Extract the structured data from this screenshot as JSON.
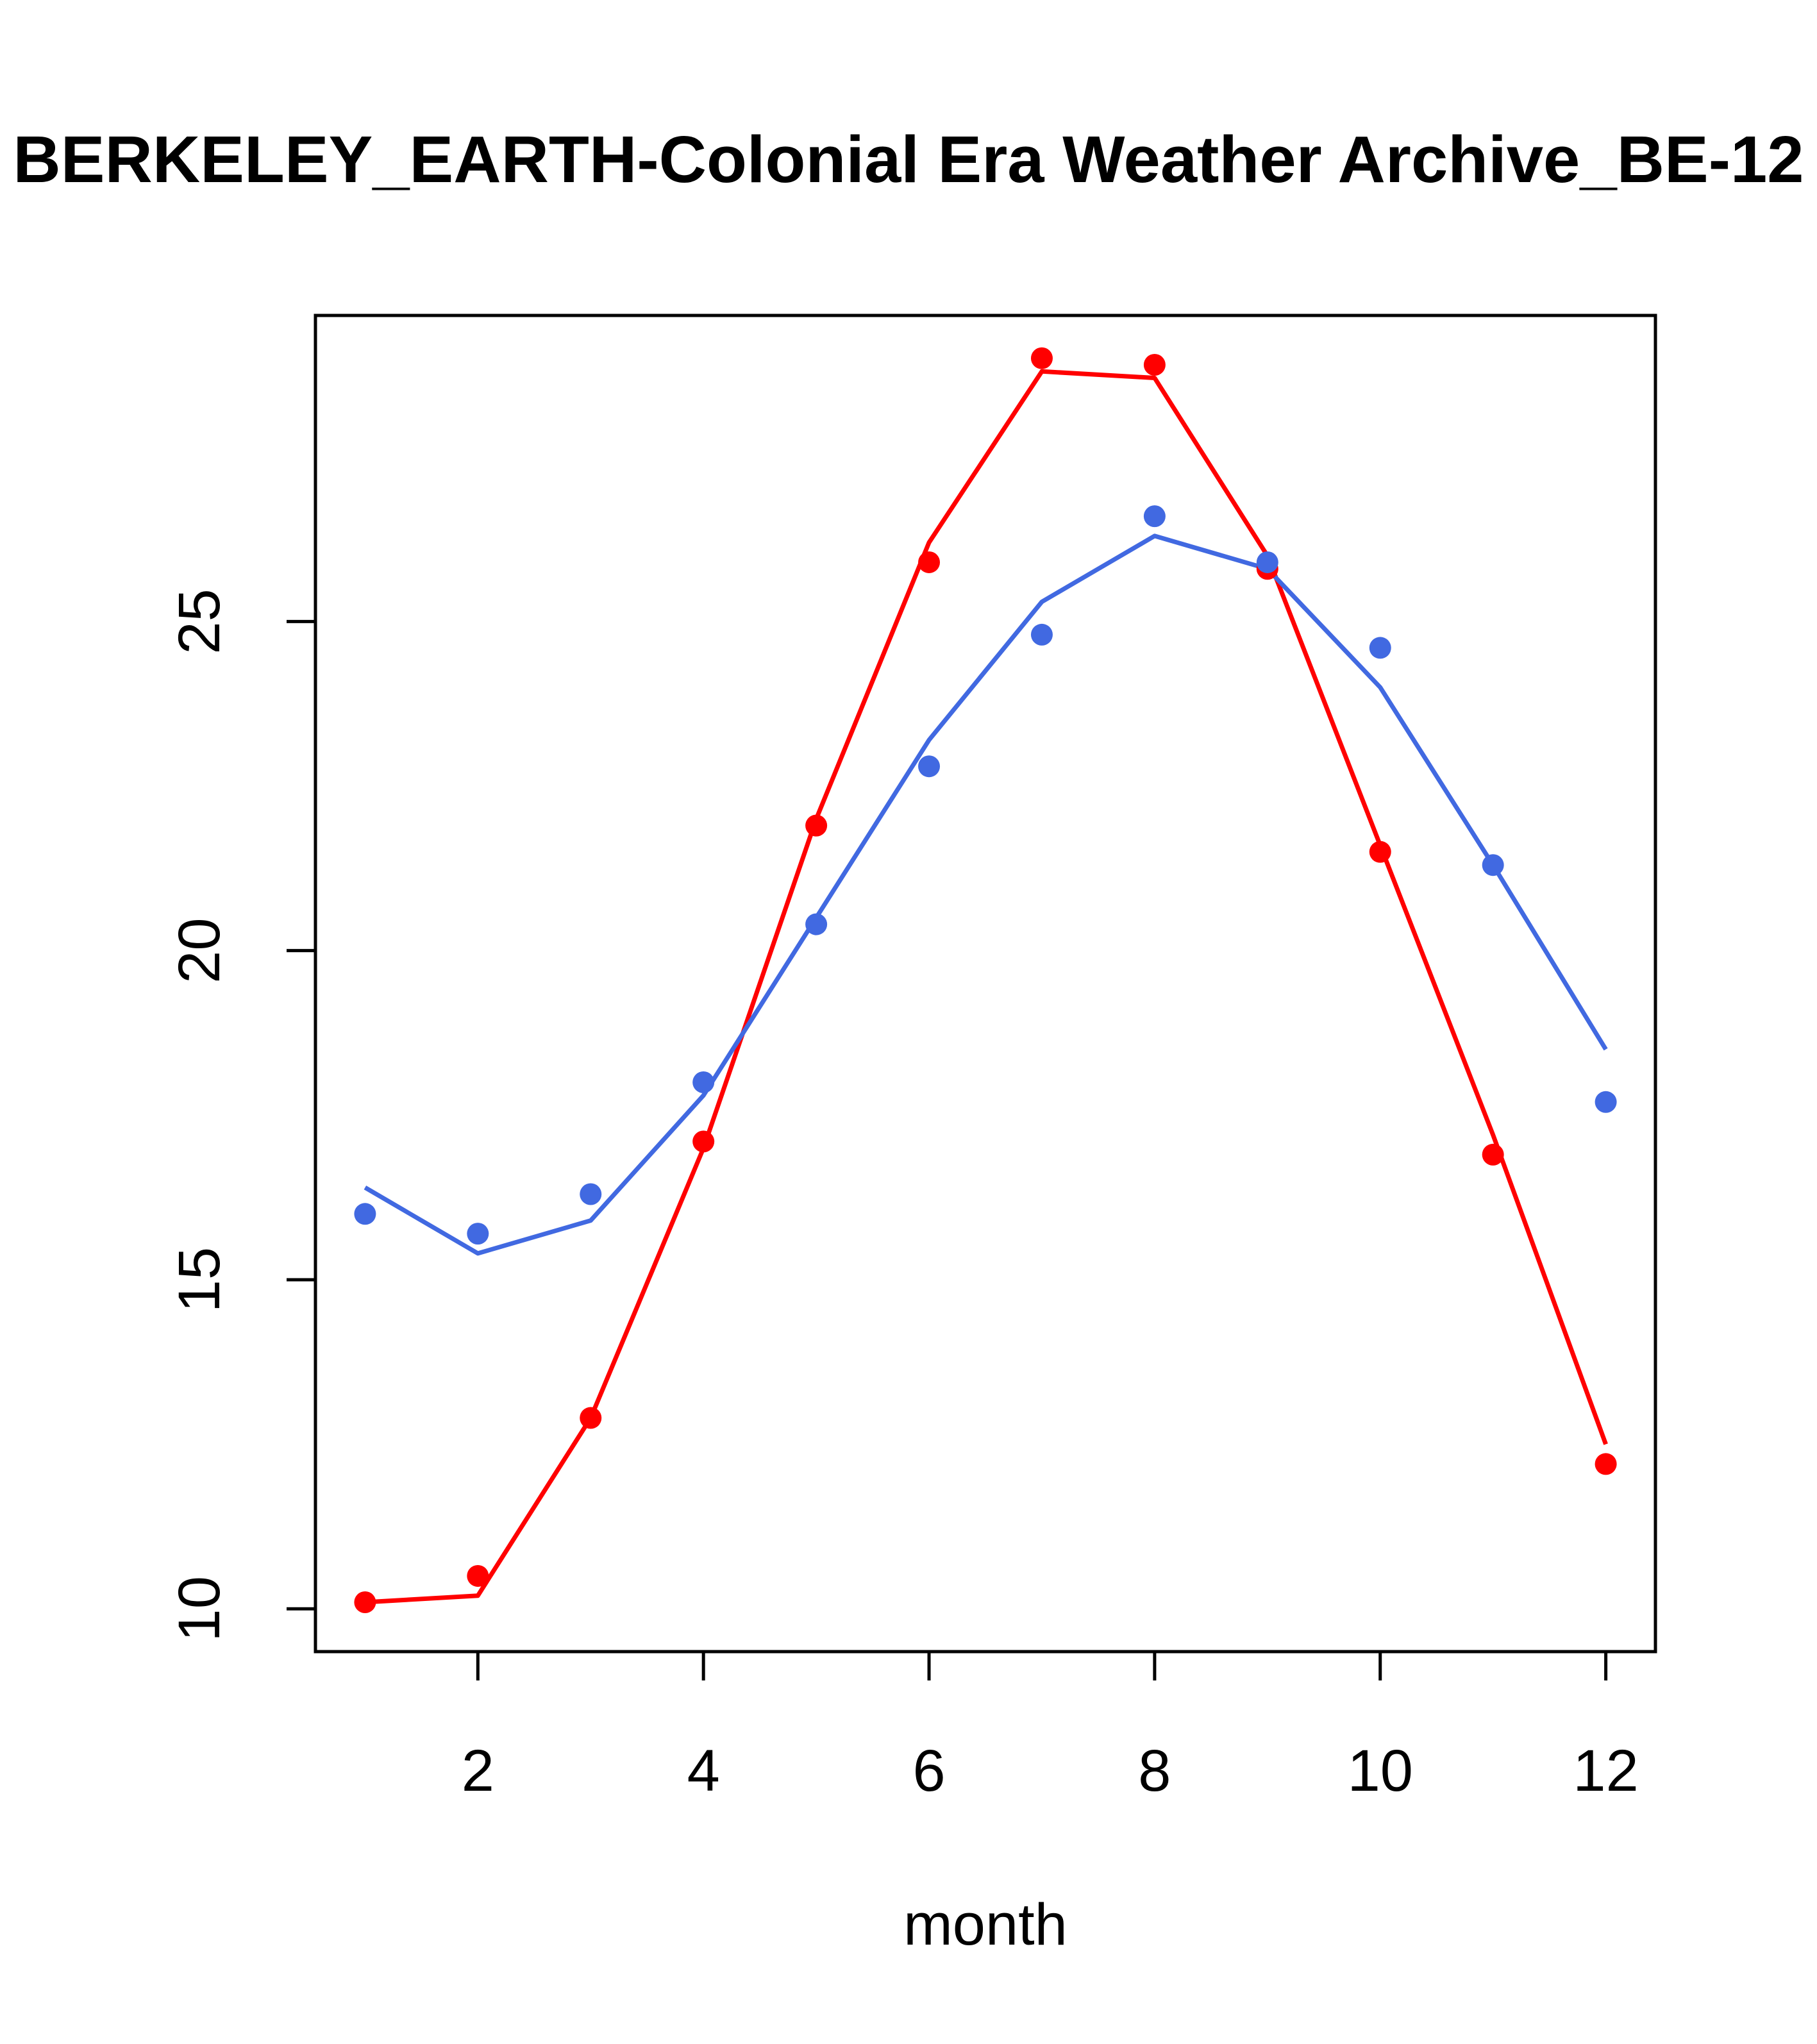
{
  "chart_data": {
    "type": "line",
    "title": "BERKELEY_EARTH-Colonial Era Weather Archive_BE-12",
    "xlabel": "month",
    "ylabel": "",
    "xlim": [
      0.56,
      12.44
    ],
    "ylim": [
      9.35,
      29.65
    ],
    "x_ticks": [
      2,
      4,
      6,
      8,
      10,
      12
    ],
    "y_ticks": [
      10,
      15,
      20,
      25
    ],
    "grid": false,
    "legend": "none",
    "series": [
      {
        "name": "red",
        "color": "#ff0000",
        "x": [
          1,
          2,
          3,
          4,
          5,
          6,
          7,
          8,
          9,
          10,
          11,
          12
        ],
        "points": [
          10.1,
          10.5,
          12.9,
          17.1,
          21.9,
          25.9,
          29.0,
          28.9,
          25.8,
          21.5,
          16.9,
          12.2
        ],
        "line": [
          10.1,
          10.2,
          12.9,
          17.0,
          22.0,
          26.2,
          28.8,
          28.7,
          26.0,
          21.6,
          17.2,
          12.5
        ]
      },
      {
        "name": "blue",
        "color": "#4169e1",
        "x": [
          1,
          2,
          3,
          4,
          5,
          6,
          7,
          8,
          9,
          10,
          11,
          12
        ],
        "points": [
          16.0,
          15.7,
          16.3,
          18.0,
          20.4,
          22.8,
          24.8,
          26.6,
          25.9,
          24.6,
          21.3,
          17.7
        ],
        "line": [
          16.4,
          15.4,
          15.9,
          17.8,
          20.5,
          23.2,
          25.3,
          26.3,
          25.8,
          24.0,
          21.3,
          18.5
        ]
      }
    ]
  }
}
